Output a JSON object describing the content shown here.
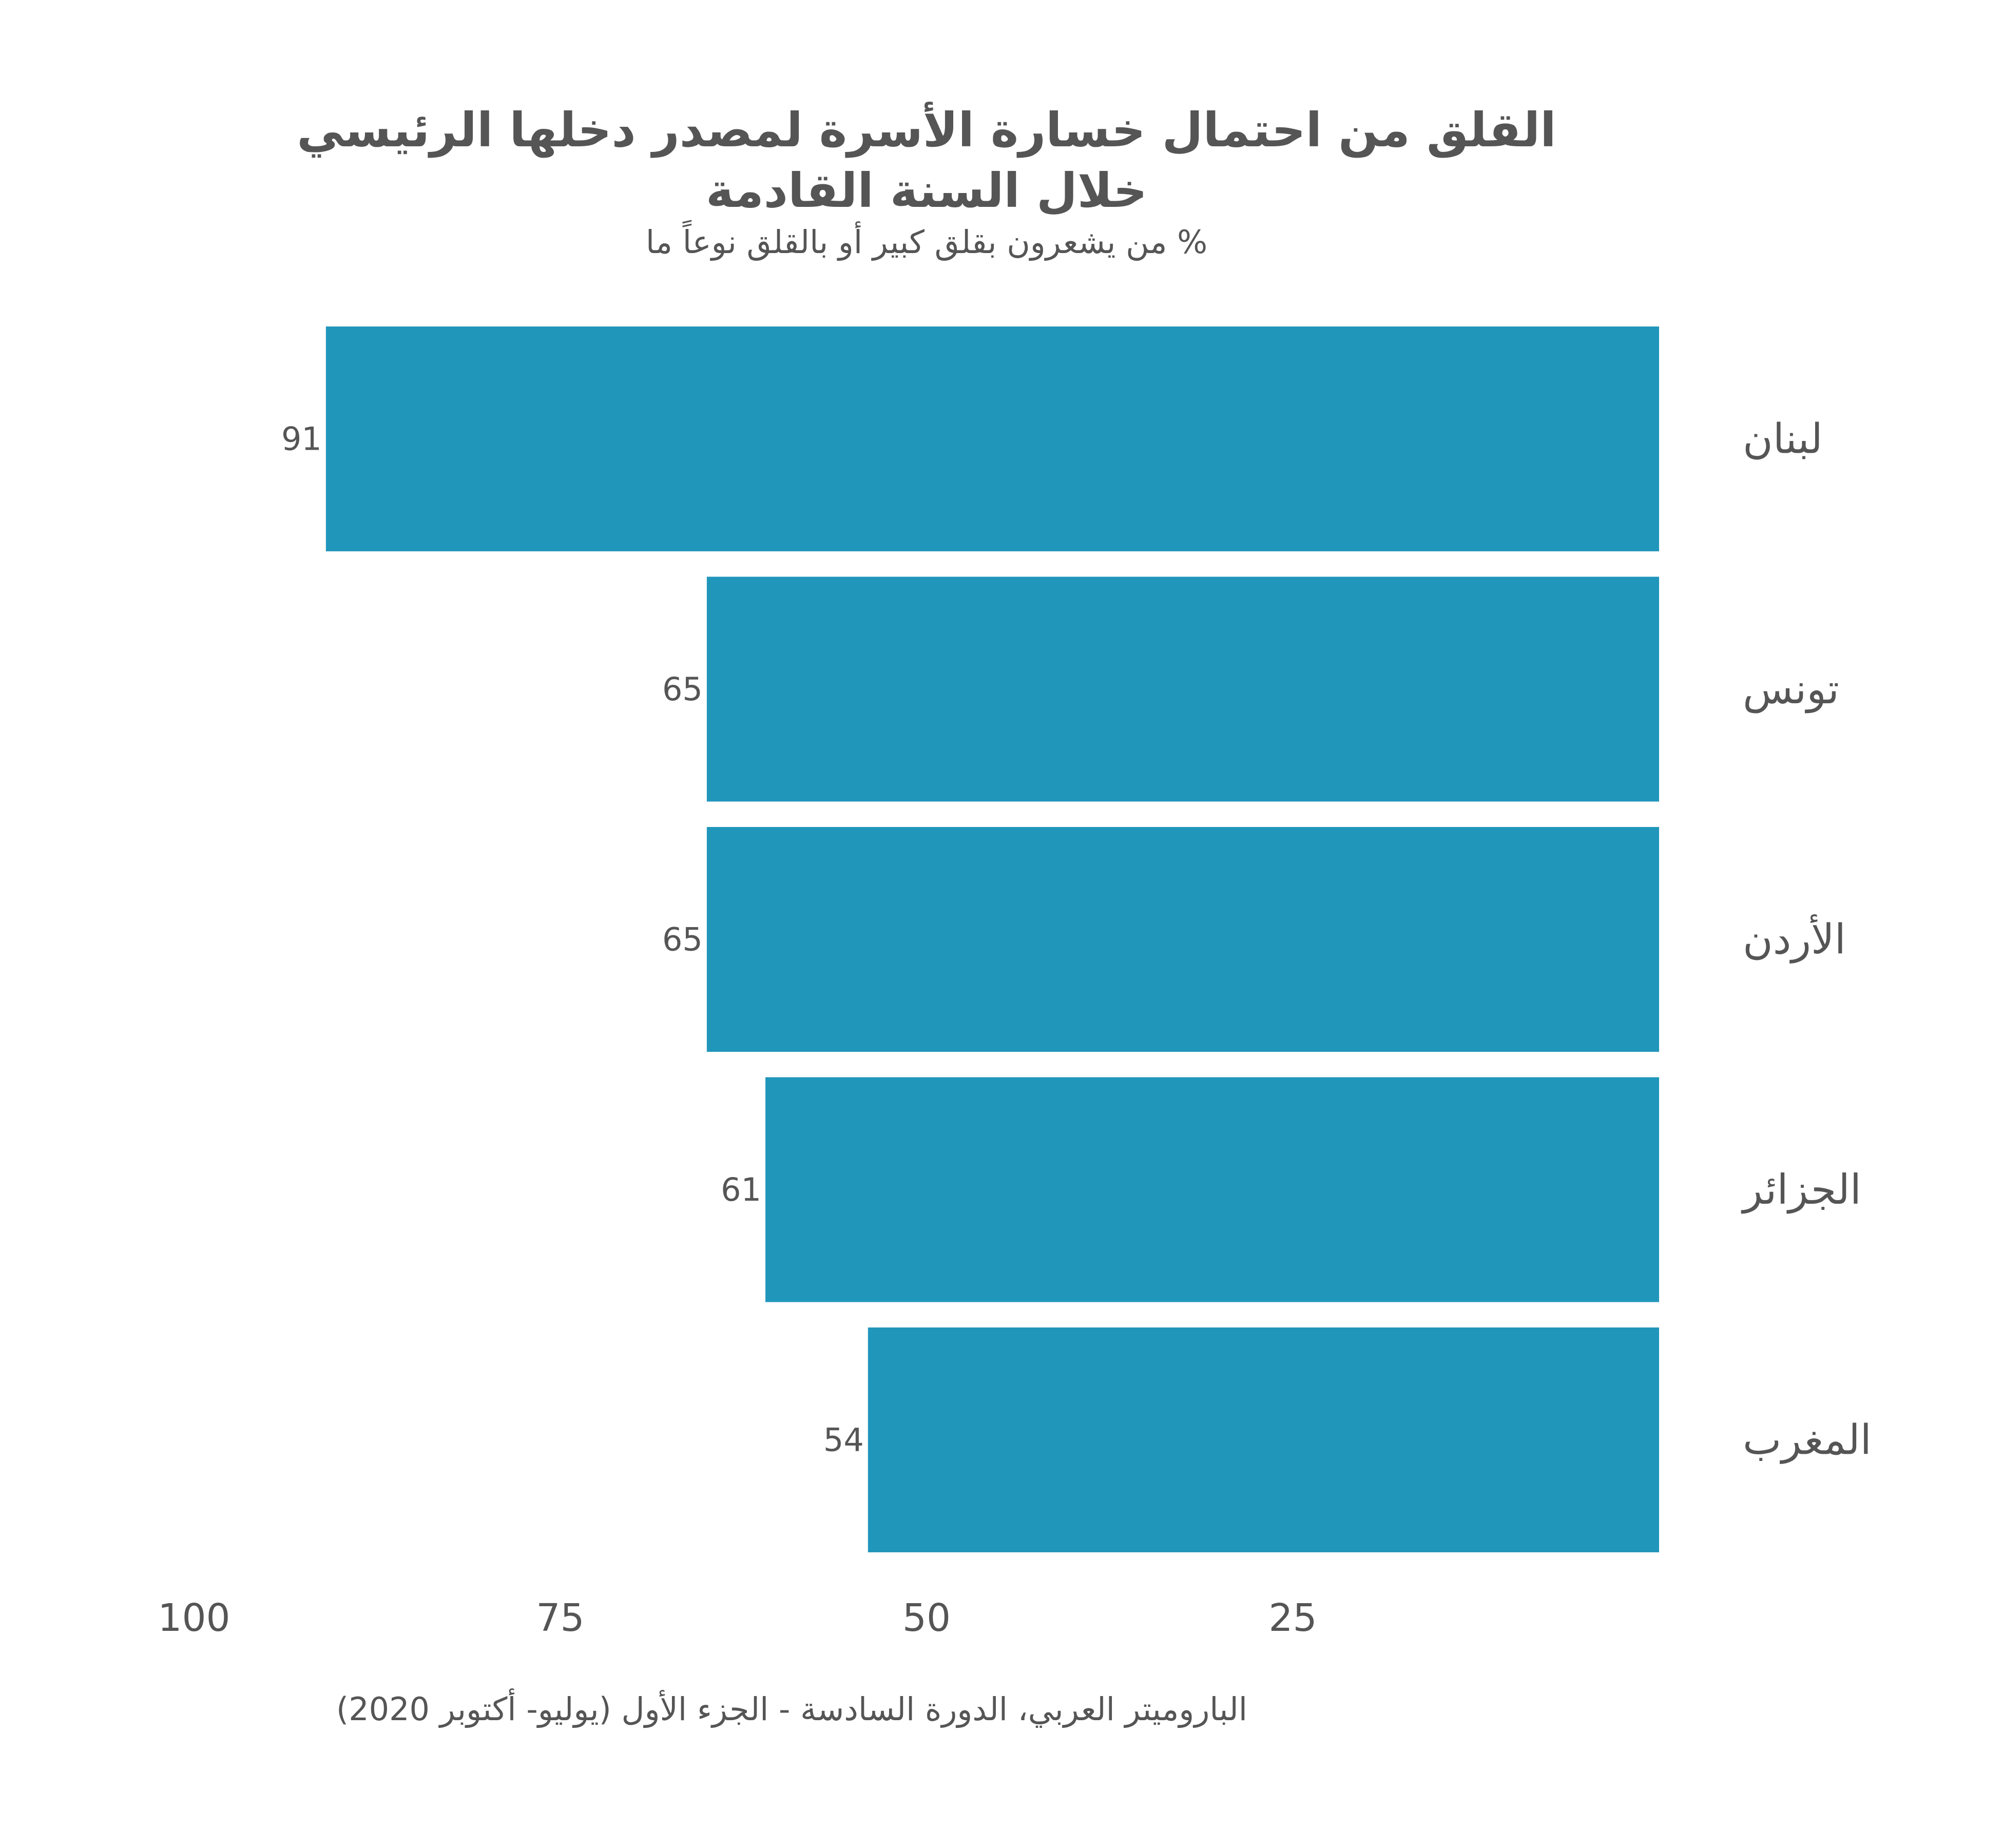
{
  "chart_data": {
    "type": "bar",
    "orientation": "horizontal",
    "x_direction": "reversed",
    "title": [
      "القلق من احتمال خسارة الأسرة لمصدر دخلها الرئيسي",
      "خلال السنة القادمة"
    ],
    "subtitle": "% من يشعرون بقلق كبير أو بالقلق نوعاً ما",
    "categories": [
      "لبنان",
      "تونس",
      "الأردن",
      "الجزائر",
      "المغرب"
    ],
    "values": [
      91,
      65,
      65,
      61,
      54
    ],
    "data_labels": [
      "91",
      "65",
      "65",
      "61",
      "54"
    ],
    "xlim": [
      0,
      100
    ],
    "x_ticks": [
      100,
      75,
      50,
      25
    ],
    "x_tick_labels": [
      "100",
      "75",
      "50",
      "25"
    ],
    "grid": false,
    "bar_color": "#2196bb",
    "text_color": "#555555",
    "caption": "الباروميتر العربي، الدورة السادسة - الجزء الأول (يوليو- أكتوبر 2020)"
  }
}
